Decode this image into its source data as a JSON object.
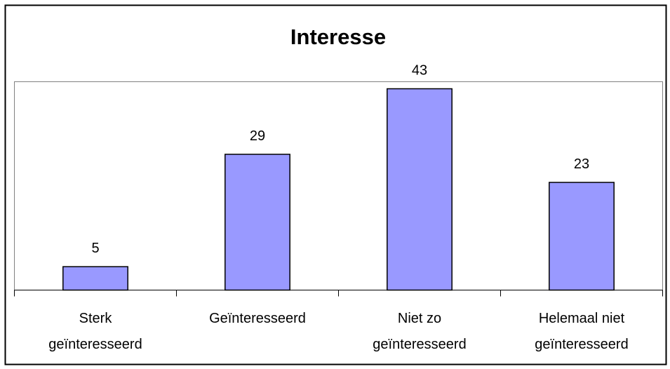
{
  "chart_data": {
    "type": "bar",
    "title": "Interesse",
    "categories": [
      "Sterk\ngeïnteresseerd",
      "Geïnteresseerd",
      "Niet zo\ngeïnteresseerd",
      "Helemaal niet\ngeïnteresseerd"
    ],
    "values": [
      5,
      29,
      43,
      23
    ],
    "color": "#9999ff",
    "ylim": [
      0,
      44.5
    ]
  }
}
